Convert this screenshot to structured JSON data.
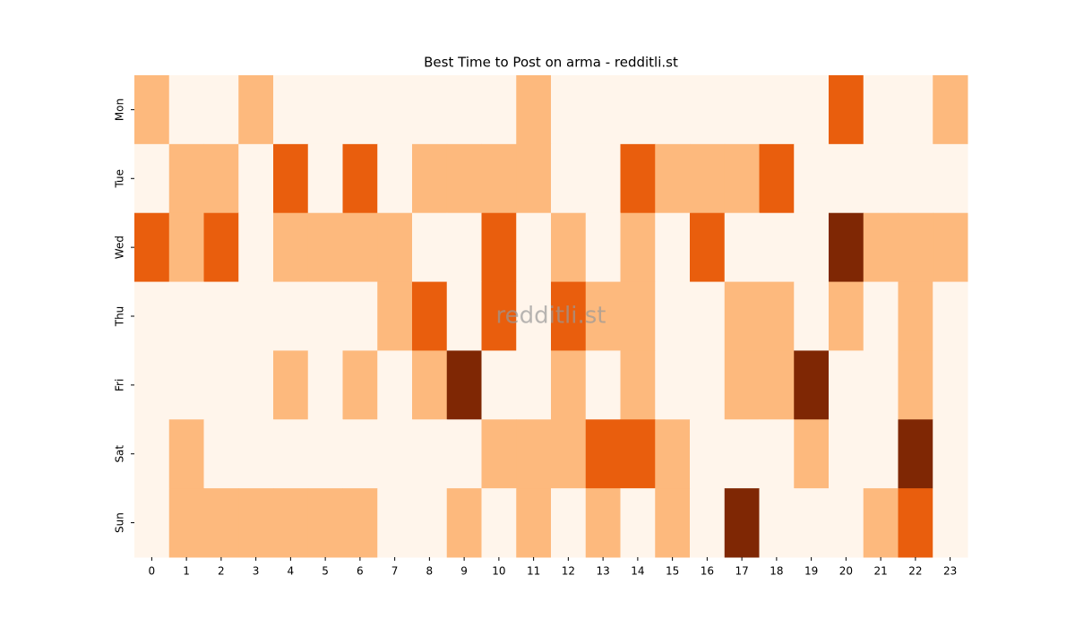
{
  "chart_data": {
    "type": "heatmap",
    "title": "Best Time to Post on arma - redditli.st",
    "watermark": "redditli.st",
    "x": [
      0,
      1,
      2,
      3,
      4,
      5,
      6,
      7,
      8,
      9,
      10,
      11,
      12,
      13,
      14,
      15,
      16,
      17,
      18,
      19,
      20,
      21,
      22,
      23
    ],
    "categories": [
      "Mon",
      "Tue",
      "Wed",
      "Thu",
      "Fri",
      "Sat",
      "Sun"
    ],
    "values": [
      [
        1,
        0,
        0,
        1,
        0,
        0,
        0,
        0,
        0,
        0,
        0,
        1,
        0,
        0,
        0,
        0,
        0,
        0,
        0,
        0,
        2,
        0,
        0,
        1
      ],
      [
        0,
        1,
        1,
        0,
        2,
        0,
        2,
        0,
        1,
        1,
        1,
        1,
        0,
        0,
        2,
        1,
        1,
        1,
        2,
        0,
        0,
        0,
        0,
        0
      ],
      [
        2,
        1,
        2,
        0,
        1,
        1,
        1,
        1,
        0,
        0,
        2,
        0,
        1,
        0,
        1,
        0,
        2,
        0,
        0,
        0,
        3,
        1,
        1,
        1
      ],
      [
        0,
        0,
        0,
        0,
        0,
        0,
        0,
        1,
        2,
        0,
        2,
        0,
        2,
        1,
        1,
        0,
        0,
        1,
        1,
        0,
        1,
        0,
        1,
        0
      ],
      [
        0,
        0,
        0,
        0,
        1,
        0,
        1,
        0,
        1,
        3,
        0,
        0,
        1,
        0,
        1,
        0,
        0,
        1,
        1,
        3,
        0,
        0,
        1,
        0
      ],
      [
        0,
        1,
        0,
        0,
        0,
        0,
        0,
        0,
        0,
        0,
        1,
        1,
        1,
        2,
        2,
        1,
        0,
        0,
        0,
        1,
        0,
        0,
        3,
        0
      ],
      [
        0,
        1,
        1,
        1,
        1,
        1,
        1,
        0,
        0,
        1,
        0,
        1,
        0,
        1,
        0,
        1,
        0,
        3,
        0,
        0,
        0,
        1,
        2,
        0
      ]
    ],
    "vlim": [
      0,
      3
    ],
    "colorscale": [
      "#fff5eb",
      "#fdb97d",
      "#e95e0d",
      "#7f2704"
    ]
  }
}
